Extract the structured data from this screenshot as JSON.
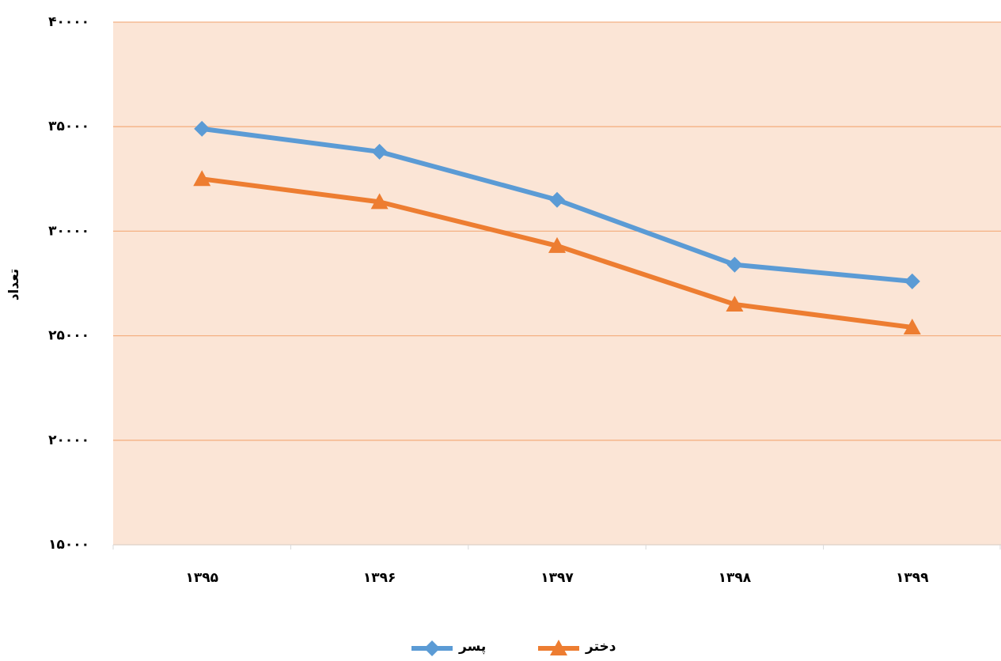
{
  "chart_data": {
    "type": "line",
    "y_label": "تعداد",
    "categories": [
      "۱۳۹۵",
      "۱۳۹۶",
      "۱۳۹۷",
      "۱۳۹۸",
      "۱۳۹۹"
    ],
    "series": [
      {
        "name": "پسر",
        "color": "#5b9bd5",
        "marker": "diamond",
        "values": [
          34900,
          33800,
          31500,
          28400,
          27600
        ]
      },
      {
        "name": "دختر",
        "color": "#ed7d31",
        "marker": "triangle",
        "values": [
          32500,
          31400,
          29300,
          26500,
          25400
        ]
      }
    ],
    "ylim": [
      15000,
      40000
    ],
    "yticks": [
      {
        "value": 15000,
        "label": "۱۵۰۰۰"
      },
      {
        "value": 20000,
        "label": "۲۰۰۰۰"
      },
      {
        "value": 25000,
        "label": "۲۵۰۰۰"
      },
      {
        "value": 30000,
        "label": "۳۰۰۰۰"
      },
      {
        "value": 35000,
        "label": "۳۵۰۰۰"
      },
      {
        "value": 40000,
        "label": "۴۰۰۰۰"
      }
    ],
    "grid": true,
    "plot_background": "#fbe5d6",
    "grid_color": "#f4b183",
    "legend": "bottom"
  }
}
